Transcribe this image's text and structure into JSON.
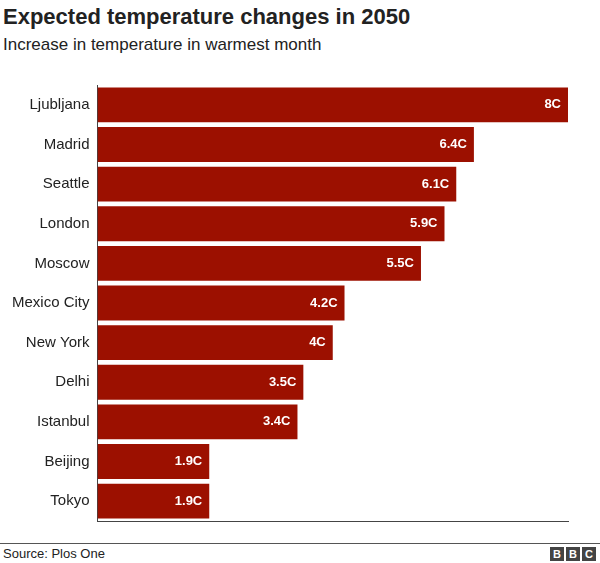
{
  "chart_data": {
    "type": "bar",
    "orientation": "horizontal",
    "title": "Expected temperature changes in 2050",
    "subtitle": "Increase in temperature in warmest month",
    "categories": [
      "Ljubljana",
      "Madrid",
      "Seattle",
      "London",
      "Moscow",
      "Mexico City",
      "New York",
      "Delhi",
      "Istanbul",
      "Beijing",
      "Tokyo"
    ],
    "values": [
      8,
      6.4,
      6.1,
      5.9,
      5.5,
      4.2,
      4,
      3.5,
      3.4,
      1.9,
      1.9
    ],
    "value_labels": [
      "8C",
      "6.4C",
      "6.1C",
      "5.9C",
      "5.5C",
      "4.2C",
      "4C",
      "3.5C",
      "3.4C",
      "1.9C",
      "1.9C"
    ],
    "color": "#9c1000",
    "xlim": [
      0,
      8
    ],
    "grid": false,
    "data_labels": true,
    "tick_labels": "y",
    "source": "Source: Plos One",
    "credit": "BBC"
  }
}
